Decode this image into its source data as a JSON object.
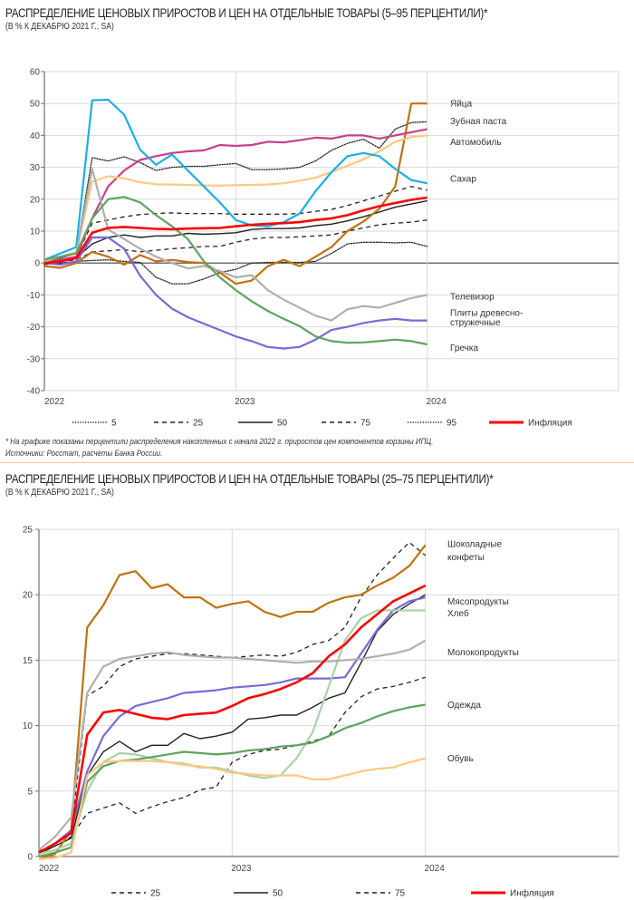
{
  "chart_data": [
    {
      "type": "line",
      "title": "РАСПРЕДЕЛЕНИЕ ЦЕНОВЫХ ПРИРОСТОВ И ЦЕН НА ОТДЕЛЬНЫЕ ТОВАРЫ (5–95 ПЕРЦЕНТИЛИ)*",
      "subtitle": "(В % К ДЕКАБРЮ 2021 Г., SA)",
      "xlabel": "",
      "ylabel": "",
      "ylim": [
        -40,
        60
      ],
      "yticks": [
        "60",
        "50",
        "40",
        "30",
        "20",
        "10",
        "0",
        "-10",
        "-20",
        "-30",
        "-40"
      ],
      "ytick_values": [
        60,
        50,
        40,
        30,
        20,
        10,
        0,
        -10,
        -20,
        -30,
        -40
      ],
      "xticks": [
        "2022",
        "2023",
        "2024"
      ],
      "xtick_index": [
        0,
        12,
        24
      ],
      "x_count": 25,
      "xlim_index": [
        0,
        36
      ],
      "grid": true,
      "legend_position": "bottom",
      "series": [
        {
          "name": "5",
          "style": "dotted",
          "color": "#222222",
          "legend": true,
          "values": [
            -0.5,
            0,
            0.5,
            0.8,
            1,
            0.5,
            0.2,
            -4.5,
            -6.5,
            -6.5,
            -5,
            -3,
            -2,
            0,
            0.2,
            0.2,
            0.2,
            0.5,
            3,
            6,
            6.5,
            6.5,
            6.3,
            6.5,
            5.2
          ]
        },
        {
          "name": "25",
          "style": "dashed",
          "color": "#222222",
          "legend": true,
          "values": [
            0,
            0.5,
            1,
            3.5,
            3.8,
            4.2,
            3.5,
            4,
            4.5,
            4.8,
            5.2,
            5.2,
            6.5,
            7.5,
            8,
            8,
            8.2,
            8.5,
            8.8,
            10,
            11,
            12,
            12.5,
            12.8,
            13.5
          ]
        },
        {
          "name": "50",
          "style": "solid",
          "color": "#222222",
          "legend": true,
          "values": [
            0,
            0.5,
            1.5,
            6,
            8,
            8.8,
            8,
            8.5,
            8.5,
            9.3,
            9,
            9.2,
            9.5,
            10.5,
            10.8,
            10.8,
            11,
            11.7,
            12.2,
            13.2,
            14.5,
            16,
            17.5,
            18.5,
            19.5
          ]
        },
        {
          "name": "75",
          "style": "dashed",
          "color": "#222222",
          "legend": true,
          "values": [
            0.5,
            1,
            2,
            12.5,
            13.5,
            14.5,
            15.2,
            15.5,
            15.7,
            15.5,
            15.5,
            15.5,
            15.3,
            15.3,
            15.3,
            15.3,
            15.5,
            16.2,
            16.8,
            18,
            19.5,
            21,
            22.5,
            24,
            22.8
          ]
        },
        {
          "name": "95",
          "style": "dotted",
          "color": "#222222",
          "legend": true,
          "values": [
            0.5,
            1.5,
            3,
            33,
            32,
            33.3,
            31.5,
            29,
            30,
            30.3,
            30.3,
            30.8,
            31.2,
            29.3,
            29.3,
            29.5,
            30,
            32,
            35.3,
            37.5,
            38.8,
            36,
            42,
            44,
            44.3
          ]
        },
        {
          "name": "Яйца",
          "style": "solid",
          "color": "#C0720F",
          "label": "Яйца",
          "values": [
            -1,
            -1.5,
            0,
            3.5,
            2,
            -0.5,
            2.5,
            0.5,
            1,
            0.3,
            0,
            -3,
            -6.5,
            -5.5,
            -1,
            1,
            -1,
            2,
            5,
            10,
            13,
            17,
            24,
            50,
            50
          ]
        },
        {
          "name": "Зубная паста",
          "style": "solid",
          "color": "#C8408A",
          "label": "Зубная паста",
          "values": [
            0,
            1,
            2,
            14,
            24,
            29,
            32.3,
            33.5,
            34.5,
            35,
            35.3,
            37,
            36.7,
            37,
            38,
            37.8,
            38.5,
            39.3,
            39,
            40,
            40,
            39,
            40,
            41,
            42
          ]
        },
        {
          "name": "Автомобиль",
          "style": "solid",
          "color": "#FFC882",
          "label": "Автомобиль",
          "values": [
            0.5,
            2,
            3.5,
            25.5,
            27.2,
            26.5,
            25.3,
            24.7,
            24.6,
            24.5,
            24.3,
            24.3,
            24.4,
            24.5,
            24.6,
            25,
            25.8,
            26.8,
            28.5,
            30.5,
            32.5,
            35,
            38,
            39.5,
            40
          ]
        },
        {
          "name": "Сахар",
          "style": "solid",
          "color": "#1AAFE6",
          "label": "Сахар",
          "values": [
            1,
            3,
            5,
            51,
            51.2,
            46.5,
            35.5,
            30.8,
            34,
            29,
            24,
            19,
            13.5,
            11.8,
            11.5,
            12.8,
            15.5,
            22.5,
            28.5,
            33.5,
            34.5,
            33.5,
            29.5,
            26,
            25
          ]
        },
        {
          "name": "Телевизор",
          "style": "solid",
          "color": "#AFAFAF",
          "label": "Телевизор",
          "values": [
            1,
            2,
            3,
            29.5,
            10.5,
            7.5,
            4.5,
            2,
            0,
            -1.7,
            -0.9,
            -2.5,
            -4.5,
            -3.8,
            -8.5,
            -11.5,
            -14,
            -16.5,
            -18,
            -14.5,
            -13.5,
            -14,
            -12.5,
            -11,
            -10
          ]
        },
        {
          "name": "Плиты древесно-стружечные",
          "style": "solid",
          "color": "#7B68D8",
          "label": "Плиты древесно-|стружечные",
          "values": [
            0,
            -0.5,
            0.5,
            8,
            8,
            4.5,
            -4,
            -10,
            -14.3,
            -17,
            -19,
            -21,
            -23,
            -24.5,
            -26.3,
            -26.8,
            -26.3,
            -24,
            -21,
            -20,
            -18.8,
            -18,
            -17.5,
            -18,
            -18
          ]
        },
        {
          "name": "Гречка",
          "style": "solid",
          "color": "#5FA35F",
          "label": "Гречка",
          "values": [
            1,
            2,
            3,
            14,
            20,
            20.7,
            19,
            15,
            11.5,
            7.5,
            0.5,
            -4.5,
            -8.5,
            -12,
            -15,
            -17.5,
            -19.8,
            -23,
            -24.5,
            -25,
            -24.9,
            -24.5,
            -24,
            -24.5,
            -25.5
          ]
        },
        {
          "name": "Инфляция",
          "style": "solid",
          "color": "#FF0000",
          "legend": true,
          "thick": true,
          "values": [
            0,
            0.5,
            1.5,
            9.5,
            11,
            11.3,
            11,
            10.7,
            10.6,
            10.8,
            10.9,
            11,
            11.5,
            12,
            12.3,
            12.5,
            12.8,
            13.5,
            14,
            15,
            16.5,
            17.8,
            18.8,
            19.8,
            20.5
          ]
        }
      ],
      "right_labels": [
        {
          "text": "Яйца",
          "value": 50
        },
        {
          "text": "Зубная паста",
          "value": 44.5
        },
        {
          "text": "Автомобиль",
          "value": 38
        },
        {
          "text": "Сахар",
          "value": 26.5
        },
        {
          "text": "Телевизор",
          "value": -10.5
        },
        {
          "text": "Плиты древесно-",
          "value": -15.5
        },
        {
          "text": "стружечные",
          "value": -18.5
        },
        {
          "text": "Гречка",
          "value": -26.5
        }
      ],
      "footnote": "* На графике показаны перцентили распределения накопленных с начала 2022 г. приростов цен компонентов корзины ИПЦ.",
      "source": "Источники: Росстат, расчеты Банка России."
    },
    {
      "type": "line",
      "title": "РАСПРЕДЕЛЕНИЕ ЦЕНОВЫХ ПРИРОСТОВ И ЦЕН НА ОТДЕЛЬНЫЕ ТОВАРЫ (25–75 ПЕРЦЕНТИЛИ)*",
      "subtitle": "(В % К ДЕКАБРЮ 2021 Г., SA)",
      "xlabel": "",
      "ylabel": "",
      "ylim": [
        0,
        25
      ],
      "yticks": [
        "25",
        "20",
        "15",
        "10",
        "5",
        "0"
      ],
      "ytick_values": [
        25,
        20,
        15,
        10,
        5,
        0
      ],
      "xticks": [
        "2022",
        "2023",
        "2024"
      ],
      "xtick_index": [
        0,
        12,
        24
      ],
      "x_count": 25,
      "xlim_index": [
        0,
        36
      ],
      "grid": true,
      "legend_position": "bottom",
      "series": [
        {
          "name": "25",
          "style": "dashed",
          "color": "#222222",
          "legend": true,
          "values": [
            0.3,
            0.8,
            1.5,
            3.3,
            3.7,
            4.1,
            3.3,
            3.8,
            4.2,
            4.5,
            5.1,
            5.3,
            7.2,
            7.8,
            8.1,
            8.2,
            8.5,
            8.8,
            9.2,
            11,
            12.2,
            12.8,
            13,
            13.3,
            13.7
          ]
        },
        {
          "name": "50",
          "style": "solid",
          "color": "#222222",
          "legend": true,
          "values": [
            0.2,
            0.8,
            1.4,
            6.2,
            8,
            8.8,
            8,
            8.5,
            8.5,
            9.4,
            9,
            9.2,
            9.5,
            10.5,
            10.6,
            10.8,
            10.8,
            11.4,
            12.1,
            12.5,
            14.8,
            17.2,
            18.5,
            19.3,
            20
          ]
        },
        {
          "name": "75",
          "style": "dashed",
          "color": "#222222",
          "legend": true,
          "values": [
            0.4,
            1,
            2,
            12.3,
            13,
            14.5,
            15.1,
            15.3,
            15.5,
            15.5,
            15.4,
            15.3,
            15.2,
            15.3,
            15.4,
            15.3,
            15.6,
            16.2,
            16.5,
            17.5,
            19.8,
            21.5,
            22.8,
            24,
            23
          ]
        },
        {
          "name": "Шоколадные конфеты",
          "style": "solid",
          "color": "#C0720F",
          "label": "Шоколадные|конфеты",
          "values": [
            -0.2,
            0.2,
            2,
            17.5,
            19.2,
            21.5,
            21.8,
            20.5,
            20.8,
            19.8,
            19.8,
            19,
            19.3,
            19.5,
            18.7,
            18.3,
            18.7,
            18.7,
            19.4,
            19.8,
            20,
            20.7,
            21.3,
            22.2,
            23.8
          ]
        },
        {
          "name": "Мясопродукты",
          "style": "solid",
          "color": "#7B68D8",
          "label": "Мясопродукты",
          "values": [
            0.3,
            1,
            2,
            6.5,
            9.2,
            10.7,
            11.5,
            11.8,
            12.1,
            12.5,
            12.6,
            12.7,
            12.9,
            13,
            13.1,
            13.3,
            13.6,
            13.6,
            13.6,
            13.7,
            15.5,
            17.3,
            18.8,
            19.5,
            19.8
          ]
        },
        {
          "name": "Хлеб",
          "style": "solid",
          "color": "#A6D4A6",
          "label": "Хлеб",
          "values": [
            0.2,
            0.5,
            1,
            5,
            7.2,
            7.9,
            7.8,
            7.5,
            7.2,
            7.1,
            6.8,
            6.8,
            6.5,
            6.2,
            6,
            6.2,
            7.5,
            9.5,
            13,
            16.5,
            18.2,
            18.8,
            18.8,
            18.8,
            18.8
          ]
        },
        {
          "name": "Молокопродукты",
          "style": "solid",
          "color": "#AFAFAF",
          "label": "Молокопродукты",
          "values": [
            0.5,
            1.5,
            3,
            12.5,
            14.5,
            15.1,
            15.3,
            15.5,
            15.6,
            15.4,
            15.3,
            15.2,
            15.2,
            15.1,
            15,
            14.9,
            14.8,
            14.9,
            14.9,
            15,
            15.1,
            15.3,
            15.5,
            15.8,
            16.5
          ]
        },
        {
          "name": "Одежда",
          "style": "solid",
          "color": "#5FA35F",
          "label": "Одежда",
          "values": [
            0,
            0.3,
            0.7,
            5.7,
            6.9,
            7.3,
            7.4,
            7.6,
            7.8,
            8,
            7.9,
            7.8,
            7.9,
            8.1,
            8.2,
            8.4,
            8.5,
            8.7,
            9.2,
            9.8,
            10.2,
            10.7,
            11.1,
            11.4,
            11.6
          ]
        },
        {
          "name": "Обувь",
          "style": "solid",
          "color": "#FFC882",
          "label": "Обувь",
          "values": [
            -0.2,
            -0.1,
            0.3,
            6.2,
            7.2,
            7.3,
            7.3,
            7.3,
            7.2,
            7,
            6.9,
            6.7,
            6.4,
            6.3,
            6.2,
            6.2,
            6.2,
            5.9,
            5.9,
            6.2,
            6.5,
            6.7,
            6.8,
            7.2,
            7.5
          ]
        },
        {
          "name": "Инфляция",
          "style": "solid",
          "color": "#FF0000",
          "legend": true,
          "thick": true,
          "values": [
            0.3,
            1,
            1.8,
            9.3,
            11,
            11.2,
            10.9,
            10.6,
            10.5,
            10.8,
            10.9,
            11,
            11.5,
            12.1,
            12.4,
            12.8,
            13.3,
            14,
            15.3,
            16.2,
            17.5,
            18.5,
            19.5,
            20.1,
            20.7
          ]
        }
      ],
      "right_labels": [
        {
          "text": "Шоколадные",
          "value": 23.9
        },
        {
          "text": "конфеты",
          "value": 22.9
        },
        {
          "text": "Мясопродукты",
          "value": 19.5
        },
        {
          "text": "Хлеб",
          "value": 18.6
        },
        {
          "text": "Молокопродукты",
          "value": 15.6
        },
        {
          "text": "Одежда",
          "value": 11.6
        },
        {
          "text": "Обувь",
          "value": 7.5
        }
      ]
    }
  ]
}
